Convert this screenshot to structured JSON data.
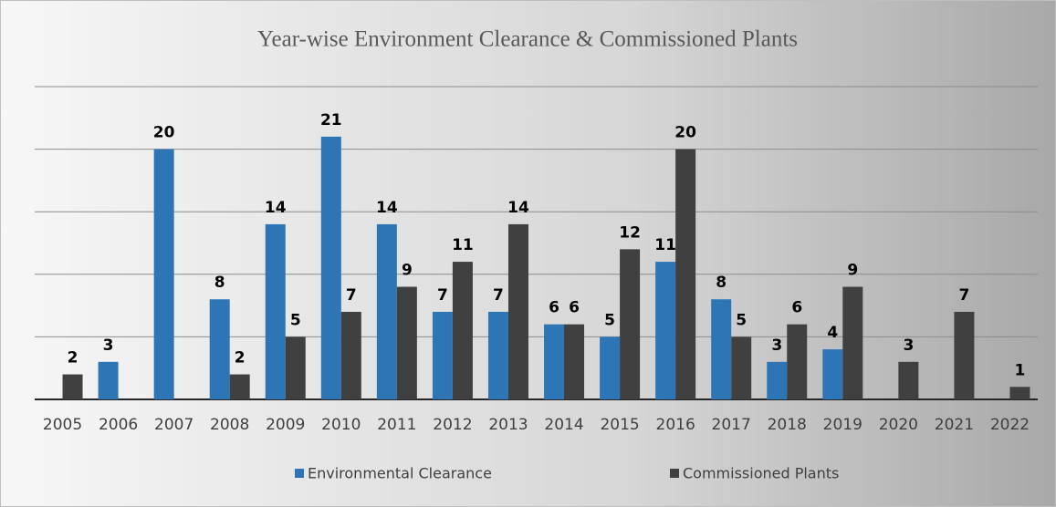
{
  "chart_data": {
    "type": "bar",
    "title": "Year-wise Environment Clearance & Commissioned Plants",
    "categories": [
      "2005",
      "2006",
      "2007",
      "2008",
      "2009",
      "2010",
      "2011",
      "2012",
      "2013",
      "2014",
      "2015",
      "2016",
      "2017",
      "2018",
      "2019",
      "2020",
      "2021",
      "2022"
    ],
    "series": [
      {
        "name": "Environmental Clearance",
        "color": "#2e75b6",
        "values": [
          null,
          3,
          20,
          8,
          14,
          21,
          14,
          7,
          7,
          6,
          5,
          11,
          8,
          3,
          4,
          null,
          null,
          null
        ]
      },
      {
        "name": "Commissioned Plants",
        "color": "#404040",
        "values": [
          2,
          null,
          null,
          2,
          5,
          7,
          9,
          11,
          14,
          6,
          12,
          20,
          5,
          6,
          9,
          3,
          7,
          1
        ]
      }
    ],
    "ylim": [
      0,
      25
    ],
    "yticks": [
      0,
      5,
      10,
      15,
      20,
      25
    ],
    "grid": true,
    "legend": "bottom"
  }
}
